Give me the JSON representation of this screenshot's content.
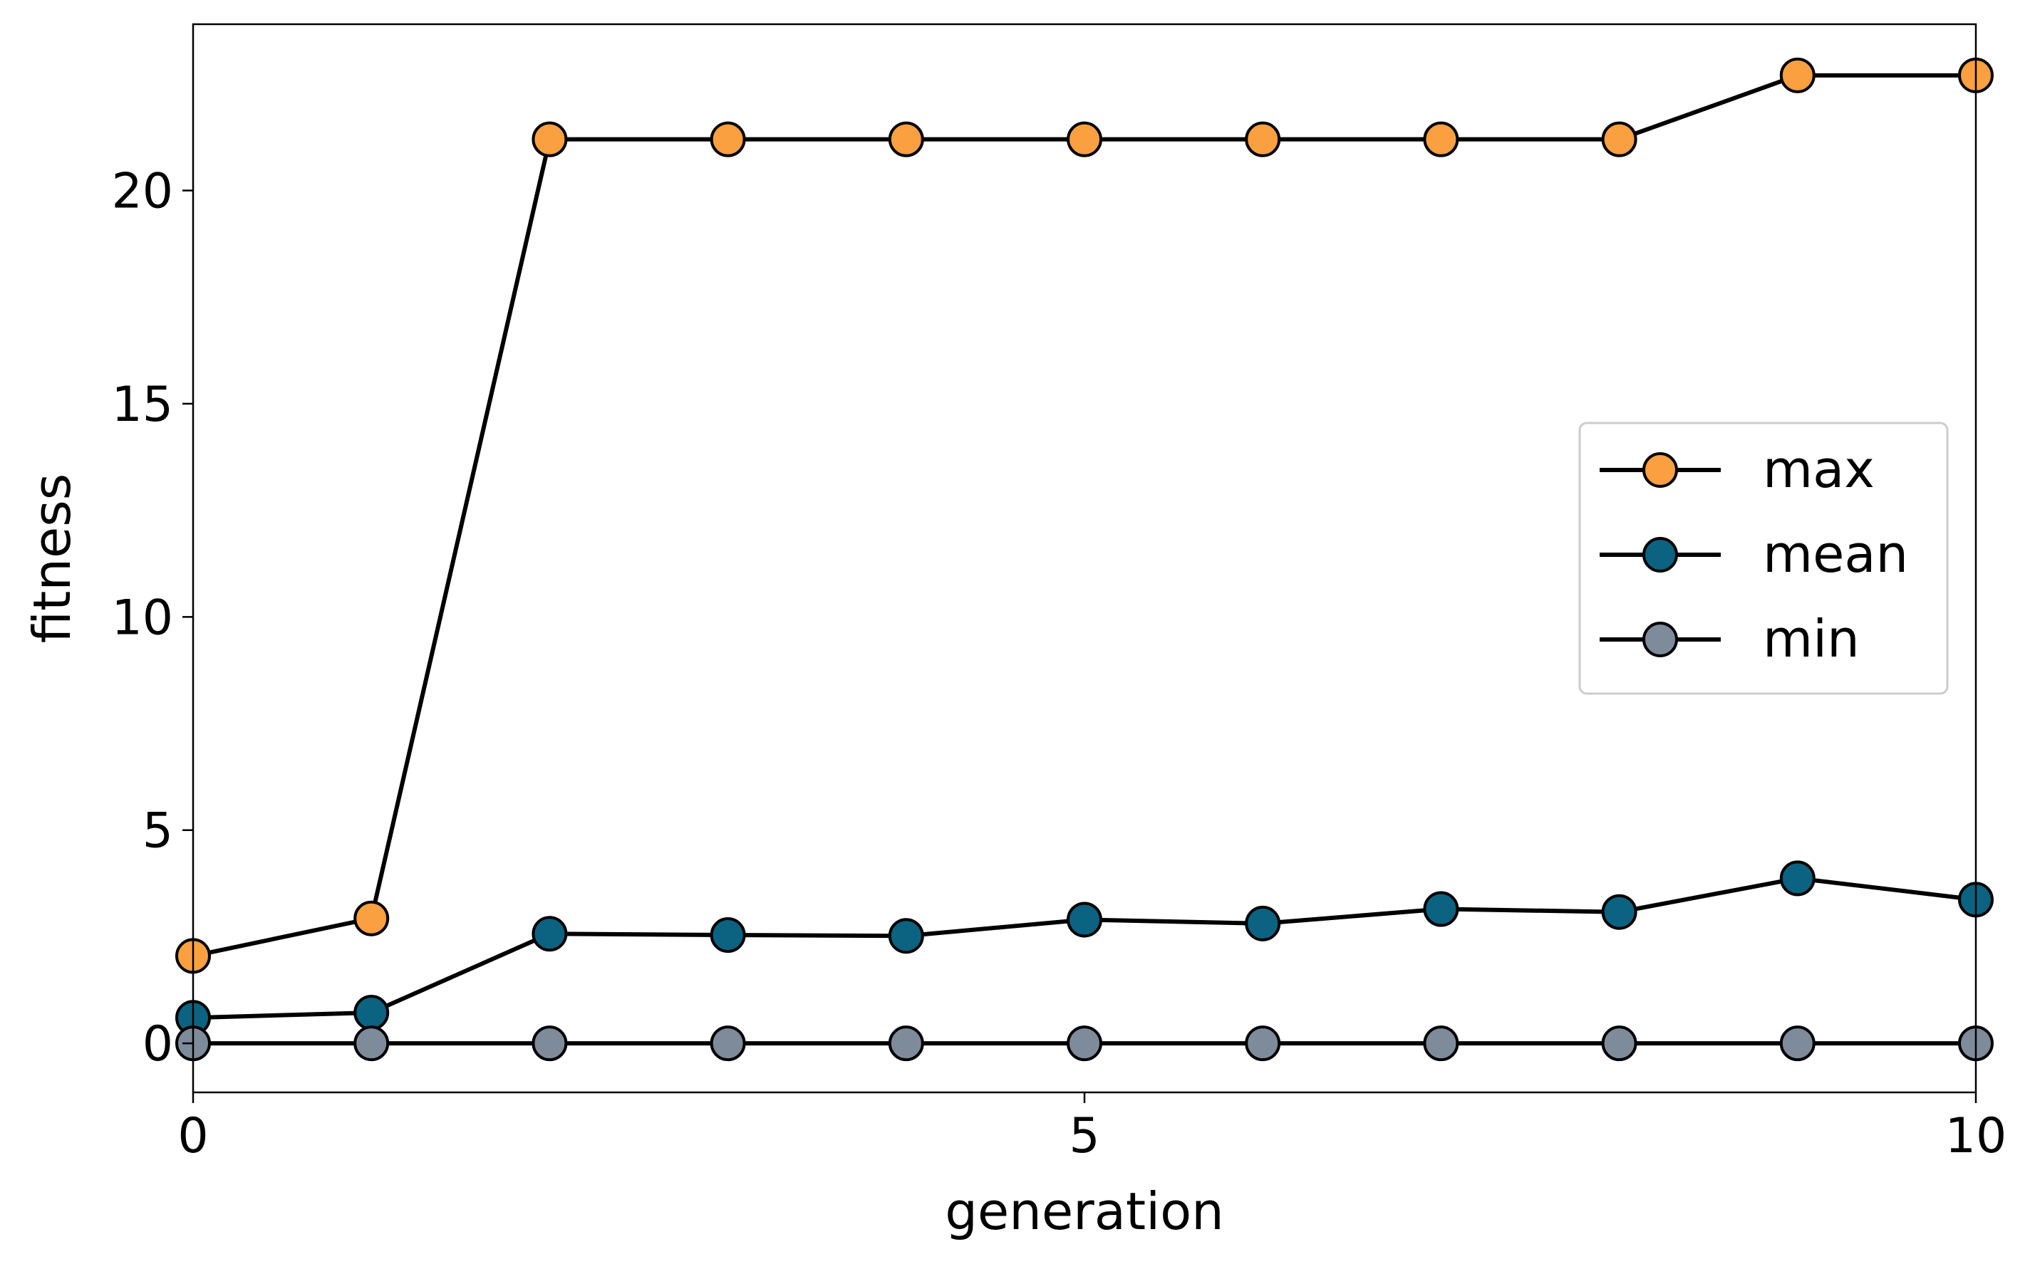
{
  "chart_data": {
    "type": "line",
    "title": "",
    "xlabel": "generation",
    "ylabel": "fitness",
    "xlim": [
      0,
      10
    ],
    "ylim": [
      -1.15,
      23.9
    ],
    "xticks": [
      0,
      5,
      10
    ],
    "xtick_labels": [
      "0",
      "5",
      "10"
    ],
    "yticks": [
      0,
      5,
      10,
      15,
      20
    ],
    "ytick_labels": [
      "0",
      "5",
      "10",
      "15",
      "20"
    ],
    "grid": false,
    "legend_position": "center-right",
    "x": [
      0,
      1,
      2,
      3,
      4,
      5,
      6,
      7,
      8,
      9,
      10
    ],
    "series": [
      {
        "name": "max",
        "color": "#FBA040",
        "values": [
          2.05,
          2.93,
          21.2,
          21.2,
          21.2,
          21.2,
          21.2,
          21.2,
          21.2,
          22.7,
          22.7
        ]
      },
      {
        "name": "mean",
        "color": "#0B6281",
        "values": [
          0.6,
          0.72,
          2.57,
          2.54,
          2.52,
          2.9,
          2.81,
          3.15,
          3.08,
          3.87,
          3.37
        ]
      },
      {
        "name": "min",
        "color": "#7D8B9A",
        "values": [
          0,
          0,
          0,
          0,
          0,
          0,
          0,
          0,
          0,
          0,
          0
        ]
      }
    ]
  }
}
